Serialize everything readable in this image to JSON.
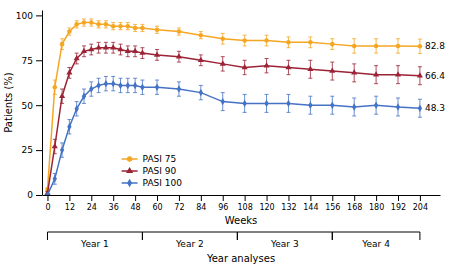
{
  "chart_data": {
    "type": "line",
    "xlabel": "Weeks",
    "ylabel": "Patients (%)",
    "group_label": "Year analyses",
    "xlim": [
      -3,
      215
    ],
    "xticks": [
      0,
      12,
      24,
      36,
      48,
      60,
      72,
      84,
      96,
      108,
      120,
      132,
      144,
      156,
      168,
      180,
      192,
      204
    ],
    "ylim": [
      0,
      103
    ],
    "yticks": [
      0,
      25,
      50,
      75,
      100
    ],
    "grid": false,
    "legend": "lower left",
    "x": [
      0,
      4,
      8,
      12,
      16,
      20,
      24,
      28,
      32,
      36,
      40,
      44,
      48,
      52,
      60,
      72,
      84,
      96,
      108,
      120,
      132,
      144,
      156,
      168,
      180,
      192,
      204
    ],
    "series": [
      {
        "name": "PASI 75",
        "color": "#F5A623",
        "marker": "circle",
        "values": [
          3,
          60,
          84,
          91,
          95,
          96,
          96,
          95,
          95,
          94,
          94,
          94,
          93,
          93,
          92,
          91,
          89,
          87,
          86,
          86,
          85,
          85,
          84,
          83,
          83,
          83,
          82.8
        ],
        "errors": [
          1,
          4,
          3,
          2,
          2,
          2,
          2,
          2,
          2,
          2,
          2,
          2,
          2,
          2,
          2,
          2,
          2,
          3,
          3,
          3,
          3,
          3,
          3,
          4,
          4,
          4,
          4
        ]
      },
      {
        "name": "PASI 90",
        "color": "#9B2335",
        "marker": "triangle",
        "values": [
          1,
          27,
          55,
          68,
          76,
          80,
          81,
          82,
          82,
          82,
          81,
          80,
          80,
          79,
          78,
          77,
          75,
          73,
          71,
          72,
          71,
          70,
          69,
          68,
          67,
          67,
          66.4
        ],
        "errors": [
          1,
          4,
          4,
          3,
          3,
          3,
          3,
          3,
          3,
          3,
          3,
          3,
          3,
          3,
          3,
          3,
          3,
          4,
          4,
          4,
          4,
          5,
          5,
          5,
          5,
          5,
          5
        ]
      },
      {
        "name": "PASI 100",
        "color": "#4472C4",
        "marker": "diamond",
        "values": [
          0,
          9,
          25,
          38,
          48,
          55,
          59,
          61,
          62,
          62,
          61,
          61,
          61,
          60,
          60,
          59,
          57,
          52,
          51,
          51,
          51,
          50,
          50,
          49,
          50,
          49,
          48.3
        ],
        "errors": [
          0,
          3,
          4,
          4,
          4,
          4,
          4,
          4,
          4,
          4,
          4,
          4,
          4,
          4,
          4,
          4,
          4,
          5,
          5,
          5,
          5,
          5,
          5,
          5,
          5,
          5,
          5
        ]
      }
    ],
    "annotations": [
      "82.8",
      "66.4",
      "48.3"
    ],
    "x_groups": [
      {
        "label": "Year 1",
        "xmin": 0,
        "xmax": 52
      },
      {
        "label": "Year 2",
        "xmin": 52,
        "xmax": 104
      },
      {
        "label": "Year 3",
        "xmin": 104,
        "xmax": 156
      },
      {
        "label": "Year 4",
        "xmin": 156,
        "xmax": 204
      }
    ]
  }
}
